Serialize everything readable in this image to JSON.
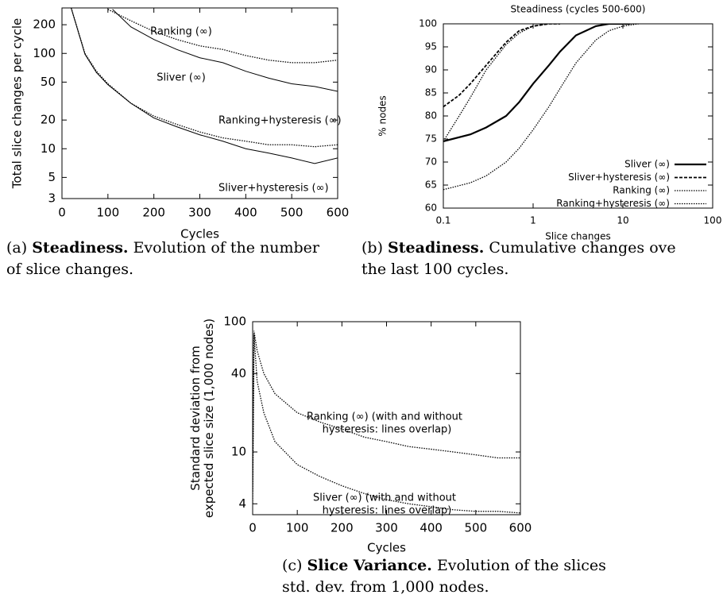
{
  "chart_data": [
    {
      "type": "line",
      "xlabel": "Cycles",
      "ylabel": "Total slice changes per cycle",
      "log_y": true,
      "xlim": [
        0,
        600
      ],
      "xticks": [
        0,
        100,
        200,
        300,
        400,
        500,
        600
      ],
      "ylim": [
        3,
        300
      ],
      "yticks": [
        3,
        5,
        10,
        20,
        50,
        100,
        200
      ],
      "series": [
        {
          "name": "Ranking (∞)",
          "color": "#000000",
          "style": "dotted",
          "x": [
            100,
            150,
            200,
            250,
            300,
            350,
            400,
            450,
            500,
            550,
            600
          ],
          "values": [
            290,
            220,
            170,
            140,
            120,
            110,
            95,
            85,
            80,
            80,
            85
          ]
        },
        {
          "name": "Sliver (∞)",
          "color": "#000000",
          "style": "thin",
          "x": [
            110,
            150,
            200,
            250,
            300,
            350,
            400,
            450,
            500,
            550,
            600
          ],
          "values": [
            290,
            190,
            140,
            110,
            90,
            80,
            65,
            55,
            48,
            45,
            40
          ]
        },
        {
          "name": "Ranking+hysteresis (∞)",
          "color": "#000000",
          "style": "dotted",
          "x": [
            20,
            50,
            75,
            100,
            150,
            200,
            250,
            300,
            350,
            400,
            450,
            500,
            550,
            600
          ],
          "values": [
            300,
            100,
            65,
            48,
            30,
            22,
            18,
            15,
            13,
            12,
            11,
            11,
            10.5,
            11
          ]
        },
        {
          "name": "Sliver+hysteresis (∞)",
          "color": "#000000",
          "style": "thin",
          "x": [
            20,
            50,
            75,
            100,
            150,
            200,
            250,
            300,
            350,
            400,
            450,
            500,
            550,
            600
          ],
          "values": [
            300,
            98,
            63,
            47,
            30,
            21,
            17,
            14,
            12,
            10,
            9,
            8,
            7,
            8
          ]
        }
      ],
      "caption_label": "(a)",
      "caption_title": "Steadiness.",
      "caption_lines": [
        "Evolution of the number",
        "of slice changes."
      ]
    },
    {
      "type": "line",
      "title": "Steadiness (cycles 500-600)",
      "xlabel": "Slice changes",
      "ylabel": "% nodes",
      "log_x": true,
      "xlim": [
        0.1,
        100
      ],
      "xticks": [
        0.1,
        1,
        10,
        100
      ],
      "ylim": [
        60,
        100
      ],
      "yticks": [
        60,
        65,
        70,
        75,
        80,
        85,
        90,
        95,
        100
      ],
      "legend": "bottom-right",
      "series": [
        {
          "name": "Sliver (∞)",
          "color": "#000000",
          "style": "thick",
          "x": [
            0.1,
            0.2,
            0.3,
            0.5,
            0.7,
            1,
            1.5,
            2,
            3,
            5,
            7,
            10,
            12
          ],
          "values": [
            74.5,
            76,
            77.5,
            80,
            83,
            87,
            91,
            94,
            97.5,
            99.5,
            100,
            100,
            100
          ]
        },
        {
          "name": "Sliver+hysteresis (∞)",
          "color": "#000000",
          "style": "dashed",
          "x": [
            0.1,
            0.15,
            0.2,
            0.3,
            0.5,
            0.7,
            1,
            1.5,
            2
          ],
          "values": [
            82,
            84.5,
            87,
            91,
            96,
            98.5,
            99.5,
            100,
            100
          ]
        },
        {
          "name": "Ranking (∞)",
          "color": "#000000",
          "style": "dotted",
          "x": [
            0.1,
            0.15,
            0.2,
            0.3,
            0.5,
            0.7,
            1,
            1.5,
            2
          ],
          "values": [
            74.5,
            80,
            84,
            90,
            95.5,
            98,
            99.5,
            100,
            100
          ]
        },
        {
          "name": "Ranking+hysteresis (∞)",
          "color": "#000000",
          "style": "dotted",
          "x": [
            0.1,
            0.2,
            0.3,
            0.5,
            0.7,
            1,
            1.5,
            2,
            3,
            5,
            7,
            10,
            15
          ],
          "values": [
            64,
            65.5,
            67,
            70,
            73,
            77,
            82,
            86,
            91.5,
            96.5,
            98.5,
            99.5,
            100
          ]
        }
      ],
      "caption_label": "(b)",
      "caption_title": "Steadiness.",
      "caption_lines": [
        "Cumulative changes ove",
        "the last 100 cycles."
      ]
    },
    {
      "type": "line",
      "xlabel": "Cycles",
      "ylabel": [
        "Standard deviation from",
        "expected slice size (1,000 nodes)"
      ],
      "log_y": true,
      "xlim": [
        0,
        600
      ],
      "xticks": [
        0,
        100,
        200,
        300,
        400,
        500,
        600
      ],
      "ylim": [
        3.3,
        100
      ],
      "yticks": [
        4,
        10,
        40,
        100
      ],
      "series": [
        {
          "color": "#000000",
          "style": "dotted",
          "x": [
            0,
            3,
            10,
            25,
            50,
            100,
            150,
            200,
            250,
            300,
            350,
            400,
            450,
            500,
            550,
            600
          ],
          "values": [
            5,
            85,
            60,
            40,
            28,
            20,
            17,
            15,
            13,
            12,
            11,
            10.5,
            10,
            9.5,
            9,
            9
          ]
        },
        {
          "color": "#000000",
          "style": "dotted",
          "x": [
            0,
            3,
            10,
            25,
            50,
            100,
            150,
            200,
            250,
            300,
            350,
            400,
            450,
            500,
            550,
            600
          ],
          "values": [
            4,
            80,
            35,
            20,
            12,
            8,
            6.5,
            5.5,
            4.8,
            4.3,
            4,
            3.8,
            3.6,
            3.5,
            3.5,
            3.4
          ]
        }
      ],
      "annotations": [
        [
          "Ranking (∞) (with and without",
          "hysteresis: lines overlap)"
        ],
        [
          "Sliver (∞) (with and without",
          "hysteresis: lines overlap)"
        ]
      ],
      "caption_label": "(c)",
      "caption_title": "Slice Variance.",
      "caption_lines": [
        "Evolution of the slices",
        "std. dev. from 1,000 nodes."
      ]
    }
  ]
}
